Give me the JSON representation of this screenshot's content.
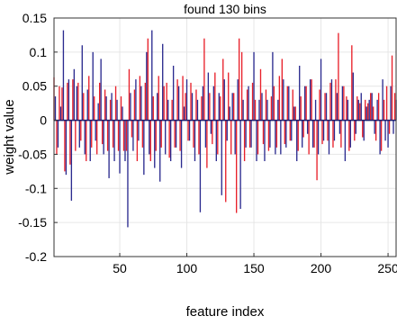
{
  "chart_data": {
    "type": "bar",
    "title": "found 130 bins",
    "xlabel": "feature index",
    "ylabel": "weight value",
    "xlim": [
      1,
      256
    ],
    "ylim": [
      -0.2,
      0.15
    ],
    "xticks": [
      50,
      100,
      150,
      200,
      250
    ],
    "yticks": [
      -0.2,
      -0.15,
      -0.1,
      -0.05,
      0,
      0.05,
      0.1,
      0.15
    ],
    "ytick_labels": [
      "-0.2",
      "-0.15",
      "-0.1",
      "-0.05",
      "0",
      "0.05",
      "0.1",
      "0.15"
    ],
    "grid": true,
    "colors": {
      "blue": "#2b2b8f",
      "red": "#e8202a",
      "zero_line": "#1e1e6e",
      "grid": "#e6e6e6",
      "axis": "#333333"
    },
    "series": [
      {
        "color": "blue",
        "x": [
          2,
          4,
          6,
          8,
          10,
          12,
          14,
          16,
          18,
          20,
          22,
          24,
          26,
          28,
          30,
          32,
          34,
          36,
          38,
          40,
          42,
          44,
          46,
          48,
          50,
          52,
          54,
          56,
          58,
          60,
          62,
          64,
          66,
          68,
          70,
          72,
          74,
          76,
          78,
          80,
          82,
          84,
          86,
          88,
          90,
          92,
          94,
          96,
          98,
          100,
          102,
          104,
          106,
          108,
          110,
          112,
          114,
          116,
          118,
          120,
          122,
          124,
          126,
          128,
          130,
          132,
          134,
          136,
          138,
          140,
          142,
          144,
          146,
          148,
          150,
          152,
          154,
          156,
          158,
          160,
          162,
          164,
          166,
          168,
          170,
          172,
          174,
          176,
          178,
          180,
          182,
          184,
          186,
          188,
          190,
          192,
          194,
          196,
          198,
          200,
          202,
          204,
          206,
          208,
          210,
          212,
          214,
          216,
          218,
          220,
          222,
          224,
          226,
          228,
          230,
          232,
          234,
          236,
          238,
          240,
          242,
          244,
          246,
          248,
          250,
          252,
          254,
          256
        ],
        "values": [
          0.035,
          -0.04,
          0.02,
          0.132,
          -0.08,
          0.06,
          -0.118,
          0.075,
          0.05,
          -0.04,
          0.11,
          -0.05,
          0.045,
          -0.06,
          0.1,
          -0.03,
          0.025,
          0.09,
          -0.05,
          0.035,
          -0.085,
          0.04,
          -0.06,
          0.03,
          -0.078,
          0.02,
          -0.06,
          -0.157,
          0.04,
          -0.045,
          0.06,
          -0.03,
          0.05,
          -0.08,
          0.1,
          -0.05,
          0.132,
          -0.07,
          0.04,
          -0.09,
          0.112,
          -0.05,
          0.03,
          -0.06,
          0.08,
          -0.04,
          0.05,
          -0.07,
          0.02,
          0.06,
          -0.03,
          0.04,
          -0.06,
          0.03,
          -0.135,
          0.05,
          -0.04,
          0.07,
          -0.02,
          0.05,
          -0.06,
          0.04,
          -0.11,
          0.06,
          -0.03,
          0.02,
          0.04,
          -0.05,
          0.06,
          -0.13,
          0.03,
          -0.04,
          0.05,
          -0.04,
          0.1,
          -0.06,
          0.03,
          0.04,
          -0.06,
          0.03,
          -0.04,
          0.1,
          -0.05,
          0.03,
          -0.05,
          0.06,
          -0.04,
          0.05,
          -0.03,
          0.02,
          -0.06,
          0.08,
          -0.04,
          0.05,
          -0.02,
          0.06,
          -0.04,
          0.03,
          -0.05,
          0.09,
          -0.03,
          0.04,
          -0.05,
          0.06,
          -0.03,
          0.04,
          -0.02,
          0.05,
          -0.06,
          0.03,
          -0.04,
          0.07,
          -0.02,
          0.03,
          0.04,
          -0.03,
          0.02,
          0.03,
          0.04,
          -0.02,
          0.03,
          -0.05,
          0.06,
          -0.03,
          -0.04,
          0.05,
          -0.02,
          0.03
        ]
      },
      {
        "color": "red",
        "x": [
          1,
          3,
          5,
          7,
          9,
          11,
          13,
          15,
          17,
          19,
          21,
          23,
          25,
          27,
          29,
          31,
          33,
          35,
          37,
          39,
          41,
          43,
          45,
          47,
          49,
          51,
          53,
          55,
          57,
          59,
          61,
          63,
          65,
          67,
          69,
          71,
          73,
          75,
          77,
          79,
          81,
          83,
          85,
          87,
          89,
          91,
          93,
          95,
          97,
          99,
          101,
          103,
          105,
          107,
          109,
          111,
          113,
          115,
          117,
          119,
          121,
          123,
          125,
          127,
          129,
          131,
          133,
          135,
          137,
          139,
          141,
          143,
          145,
          147,
          149,
          151,
          153,
          155,
          157,
          159,
          161,
          163,
          165,
          167,
          169,
          171,
          173,
          175,
          177,
          179,
          181,
          183,
          185,
          187,
          189,
          191,
          193,
          195,
          197,
          199,
          201,
          203,
          205,
          207,
          209,
          211,
          213,
          215,
          217,
          219,
          221,
          223,
          225,
          227,
          229,
          231,
          233,
          235,
          237,
          239,
          241,
          243,
          245,
          247,
          249,
          251,
          253,
          255
        ],
        "values": [
          0.063,
          -0.05,
          0.05,
          0.048,
          -0.075,
          0.055,
          -0.065,
          0.06,
          -0.045,
          0.055,
          -0.03,
          0.04,
          -0.06,
          0.065,
          -0.04,
          0.035,
          -0.05,
          0.055,
          -0.035,
          0.045,
          -0.045,
          0.03,
          -0.04,
          0.05,
          -0.045,
          0.035,
          -0.045,
          -0.045,
          0.075,
          -0.025,
          0.045,
          -0.06,
          0.065,
          -0.04,
          0.055,
          0.12,
          -0.06,
          0.035,
          -0.045,
          0.065,
          -0.04,
          0.05,
          0.055,
          -0.055,
          0.03,
          -0.04,
          0.06,
          -0.045,
          0.065,
          0.04,
          -0.03,
          0.055,
          -0.04,
          0.045,
          -0.05,
          0.035,
          0.12,
          -0.07,
          0.04,
          -0.035,
          0.07,
          -0.05,
          0.035,
          0.09,
          -0.12,
          0.07,
          -0.05,
          0.04,
          -0.136,
          0.12,
          0.1,
          -0.06,
          0.045,
          -0.04,
          0.055,
          0.03,
          -0.05,
          0.075,
          -0.035,
          0.045,
          -0.045,
          0.035,
          0.05,
          -0.04,
          0.065,
          0.09,
          -0.035,
          0.05,
          -0.03,
          0.045,
          0.02,
          -0.045,
          0.035,
          -0.025,
          0.05,
          -0.05,
          0.06,
          -0.04,
          -0.088,
          0.045,
          -0.035,
          0.04,
          -0.03,
          0.055,
          -0.04,
          0.06,
          0.128,
          -0.04,
          0.05,
          0.035,
          -0.045,
          0.11,
          -0.03,
          0.035,
          0.025,
          -0.025,
          0.03,
          0.025,
          0.04,
          0.02,
          -0.03,
          0.04,
          -0.045,
          0.03,
          0.05,
          -0.02,
          0.095,
          0.04
        ]
      }
    ]
  }
}
